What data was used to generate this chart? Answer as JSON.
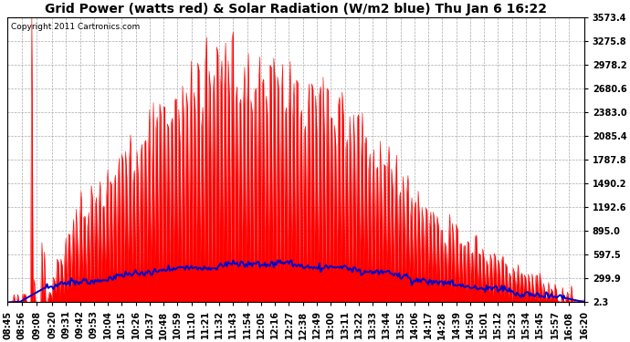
{
  "title": "Grid Power (watts red) & Solar Radiation (W/m2 blue) Thu Jan 6 16:22",
  "copyright": "Copyright 2011 Cartronics.com",
  "ylabel_right_ticks": [
    2.3,
    299.9,
    597.5,
    895.0,
    1192.6,
    1490.2,
    1787.8,
    2085.4,
    2383.0,
    2680.6,
    2978.2,
    3275.8,
    3573.4
  ],
  "ymin": 2.3,
  "ymax": 3573.4,
  "bg_color": "#ffffff",
  "plot_bg_color": "#ffffff",
  "grid_color": "#aaaaaa",
  "title_color": "#000000",
  "red_color": "#ff0000",
  "blue_color": "#0000cc",
  "title_fontsize": 10,
  "tick_fontsize": 7.0,
  "copyright_fontsize": 6.5
}
